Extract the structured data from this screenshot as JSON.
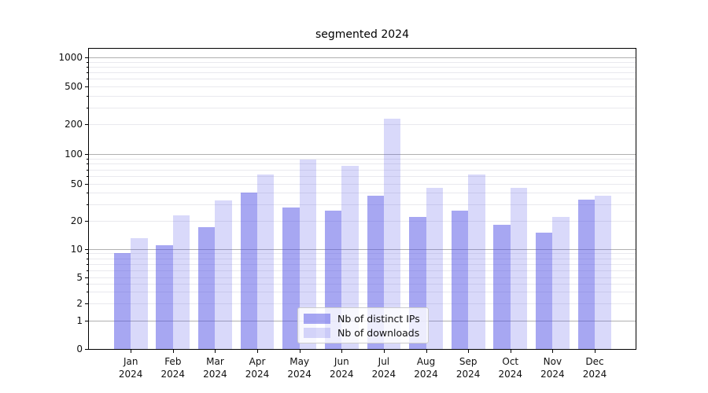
{
  "chart_data": {
    "type": "bar",
    "title": "segmented 2024",
    "categories": [
      "Jan 2024",
      "Feb 2024",
      "Mar 2024",
      "Apr 2024",
      "May 2024",
      "Jun 2024",
      "Jul 2024",
      "Aug 2024",
      "Sep 2024",
      "Oct 2024",
      "Nov 2024",
      "Dec 2024"
    ],
    "series": [
      {
        "name": "Nb of distinct IPs",
        "color": "rgba(80,80,230,0.5)",
        "values": [
          9,
          11,
          17,
          40,
          28,
          26,
          37,
          22,
          26,
          18,
          15,
          34
        ]
      },
      {
        "name": "Nb of downloads",
        "color": "rgba(80,80,230,0.22)",
        "values": [
          13,
          23,
          33,
          62,
          88,
          76,
          230,
          45,
          62,
          45,
          22,
          37
        ]
      }
    ],
    "yscale": "symlog",
    "yticks": [
      0,
      1,
      2,
      5,
      10,
      20,
      50,
      100,
      200,
      500,
      1000
    ],
    "major_yticks": [
      1,
      10,
      100,
      1000
    ],
    "minor_yticks": [
      3,
      4,
      6,
      7,
      8,
      9,
      30,
      40,
      60,
      70,
      80,
      90,
      300,
      400,
      600,
      700,
      800,
      900
    ],
    "ylim": [
      0,
      1250
    ],
    "xlabel": "",
    "ylabel": "",
    "grid": true,
    "legend_position": "lower center"
  },
  "colors": {
    "major_grid": "#b0b0b0",
    "minor_grid": "#e9e9ee",
    "spine": "#000000",
    "bar_base": "#5050e6"
  }
}
